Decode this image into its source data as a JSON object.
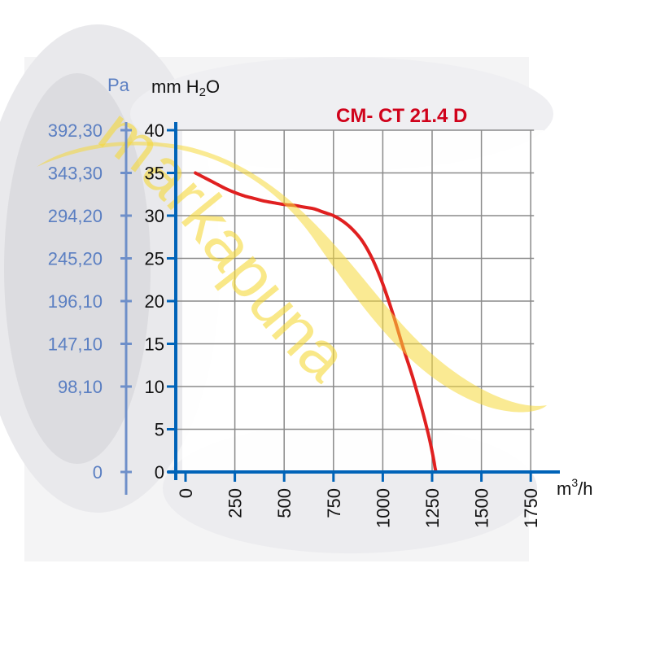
{
  "chart_data": {
    "type": "line",
    "title": "CM- CT 21.4 D",
    "x_unit": "m",
    "x_unit_sup": "3",
    "x_unit_suffix": "/h",
    "y_unit_pa": "Pa",
    "y_unit_mm": "mm H",
    "y_unit_mm_sub": "2",
    "y_unit_mm_suffix": "O",
    "xlim": [
      0,
      1750
    ],
    "ylim": [
      0,
      40
    ],
    "x_ticks": [
      0,
      250,
      500,
      750,
      1000,
      1250,
      1500,
      1750
    ],
    "x_tick_labels": [
      "0",
      "250",
      "500",
      "750",
      "1000",
      "1250",
      "1500",
      "1750"
    ],
    "y_ticks": [
      0,
      5,
      10,
      15,
      20,
      25,
      30,
      35,
      40
    ],
    "y_tick_labels": [
      "0",
      "5",
      "10",
      "15",
      "20",
      "25",
      "30",
      "35",
      "40"
    ],
    "pa_ticks": [
      0,
      10,
      15,
      20,
      25,
      30,
      35,
      40
    ],
    "pa_tick_labels": [
      "0",
      "98,10",
      "147,10",
      "196,10",
      "245,20",
      "294,20",
      "343,30",
      "392,30"
    ],
    "grid": true,
    "series": [
      {
        "color": "#e02020",
        "x": [
          50,
          100,
          150,
          200,
          250,
          300,
          350,
          400,
          450,
          500,
          550,
          600,
          650,
          700,
          750,
          800,
          850,
          900,
          950,
          1000,
          1050,
          1100,
          1150,
          1200,
          1230,
          1250,
          1260,
          1265,
          1270
        ],
        "y": [
          35,
          34.4,
          33.8,
          33.2,
          32.7,
          32.3,
          32.0,
          31.7,
          31.5,
          31.3,
          31.2,
          31.0,
          30.8,
          30.4,
          30.0,
          29.3,
          28.3,
          26.9,
          24.8,
          22.0,
          18.6,
          14.8,
          11.2,
          7.2,
          4.5,
          2.4,
          1.2,
          0.5,
          0
        ]
      }
    ]
  },
  "watermark": {
    "text": "markapuna",
    "color": "#f6d93a"
  }
}
